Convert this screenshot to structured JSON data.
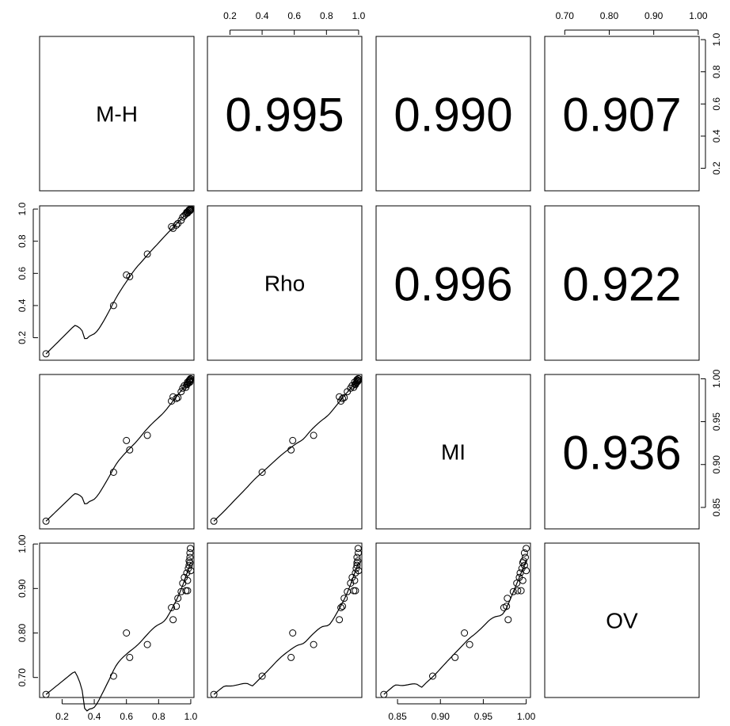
{
  "chart_data": {
    "type": "scatter",
    "variables": [
      "M-H",
      "Rho",
      "MI",
      "OV"
    ],
    "correlations": [
      {
        "row": 0,
        "col": 1,
        "value": "0.995"
      },
      {
        "row": 0,
        "col": 2,
        "value": "0.990"
      },
      {
        "row": 0,
        "col": 3,
        "value": "0.907"
      },
      {
        "row": 1,
        "col": 2,
        "value": "0.996"
      },
      {
        "row": 1,
        "col": 3,
        "value": "0.922"
      },
      {
        "row": 2,
        "col": 3,
        "value": "0.936"
      }
    ],
    "axes": {
      "M-H": {
        "range": [
          0.06,
          1.02
        ],
        "ticks": [
          0.2,
          0.4,
          0.6,
          0.8,
          1.0
        ],
        "ticklabels": [
          "0.2",
          "0.4",
          "0.6",
          "0.8",
          "1.0"
        ]
      },
      "Rho": {
        "range": [
          0.06,
          1.02
        ],
        "ticks": [
          0.2,
          0.4,
          0.6,
          0.8,
          1.0
        ],
        "ticklabels": [
          "0.2",
          "0.4",
          "0.6",
          "0.8",
          "1.0"
        ]
      },
      "MI": {
        "range": [
          0.825,
          1.005
        ],
        "ticks": [
          0.85,
          0.9,
          0.95,
          1.0
        ],
        "ticklabels": [
          "0.85",
          "0.90",
          "0.95",
          "1.00"
        ]
      },
      "OV": {
        "range": [
          0.655,
          1.002
        ],
        "ticks": [
          0.7,
          0.8,
          0.9,
          1.0
        ],
        "ticklabels": [
          "0.70",
          "0.80",
          "0.90",
          "1.00"
        ]
      }
    },
    "observations": [
      {
        "MH": 0.1,
        "Rho": 0.1,
        "MI": 0.834,
        "OV": 0.662
      },
      {
        "MH": 0.52,
        "Rho": 0.4,
        "MI": 0.891,
        "OV": 0.703
      },
      {
        "MH": 0.6,
        "Rho": 0.59,
        "MI": 0.928,
        "OV": 0.8
      },
      {
        "MH": 0.62,
        "Rho": 0.58,
        "MI": 0.917,
        "OV": 0.745
      },
      {
        "MH": 0.73,
        "Rho": 0.72,
        "MI": 0.934,
        "OV": 0.774
      },
      {
        "MH": 0.88,
        "Rho": 0.89,
        "MI": 0.974,
        "OV": 0.857
      },
      {
        "MH": 0.89,
        "Rho": 0.88,
        "MI": 0.979,
        "OV": 0.83
      },
      {
        "MH": 0.91,
        "Rho": 0.9,
        "MI": 0.977,
        "OV": 0.86
      },
      {
        "MH": 0.92,
        "Rho": 0.91,
        "MI": 0.978,
        "OV": 0.878
      },
      {
        "MH": 0.94,
        "Rho": 0.93,
        "MI": 0.985,
        "OV": 0.893
      },
      {
        "MH": 0.95,
        "Rho": 0.95,
        "MI": 0.989,
        "OV": 0.912
      },
      {
        "MH": 0.96,
        "Rho": 0.96,
        "MI": 0.992,
        "OV": 0.925
      },
      {
        "MH": 0.97,
        "Rho": 0.97,
        "MI": 0.99,
        "OV": 0.895
      },
      {
        "MH": 0.975,
        "Rho": 0.98,
        "MI": 0.993,
        "OV": 0.935
      },
      {
        "MH": 0.98,
        "Rho": 0.975,
        "MI": 0.996,
        "OV": 0.918
      },
      {
        "MH": 0.985,
        "Rho": 0.985,
        "MI": 0.995,
        "OV": 0.945
      },
      {
        "MH": 0.99,
        "Rho": 0.99,
        "MI": 0.998,
        "OV": 0.952
      },
      {
        "MH": 0.99,
        "Rho": 0.995,
        "MI": 0.997,
        "OV": 0.962
      },
      {
        "MH": 0.995,
        "Rho": 0.99,
        "MI": 0.999,
        "OV": 0.97
      },
      {
        "MH": 0.995,
        "Rho": 0.998,
        "MI": 0.998,
        "OV": 0.98
      },
      {
        "MH": 0.998,
        "Rho": 0.997,
        "MI": 1.0,
        "OV": 0.99
      },
      {
        "MH": 1.0,
        "Rho": 1.0,
        "MI": 1.0,
        "OV": 0.94
      },
      {
        "MH": 0.995,
        "Rho": 0.99,
        "MI": 0.996,
        "OV": 0.958
      },
      {
        "MH": 0.98,
        "Rho": 0.98,
        "MI": 0.994,
        "OV": 0.895
      }
    ]
  }
}
